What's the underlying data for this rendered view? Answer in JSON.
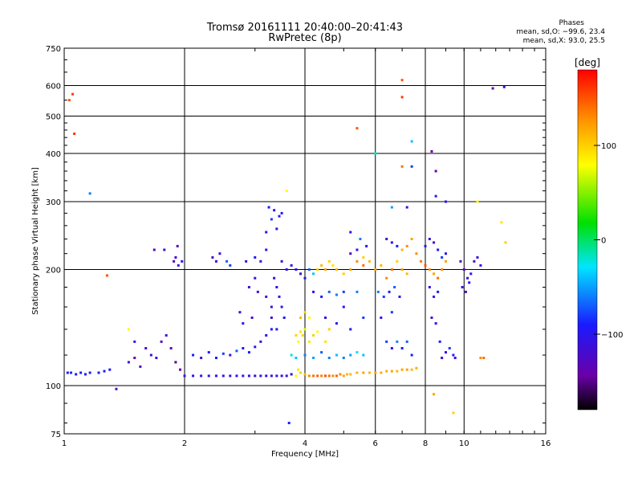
{
  "header": {
    "title_line1": "Tromsø 20161111 20:40:00–20:41:43",
    "title_line2": "RwPretec (8p)",
    "phases_title": "Phases",
    "phases_o": "mean, sd,O:  −99.6, 23.4",
    "phases_x": "mean, sd,X:   93.0, 25.5"
  },
  "chart_data": {
    "type": "scatter",
    "xlabel": "Frequency [MHz]",
    "ylabel": "Stationary phase Virtual Height [km]",
    "x_scale": "log",
    "y_scale": "log",
    "xlim": [
      1,
      16
    ],
    "ylim": [
      75,
      750
    ],
    "x_ticks": [
      1,
      2,
      4,
      6,
      8,
      10,
      16
    ],
    "y_ticks": [
      75,
      100,
      200,
      300,
      400,
      500,
      600,
      750
    ],
    "grid": true,
    "colorbar": {
      "label": "[deg]",
      "range": [
        -180,
        180
      ],
      "ticks": [
        100,
        0,
        -100
      ],
      "colormap": "rainbow (black → purple → blue → cyan → green → yellow → orange → red)"
    },
    "points_note": "values estimated from the plotted echoes; color = phase in degrees",
    "points": [
      [
        1.02,
        108,
        -90
      ],
      [
        1.04,
        108,
        -85
      ],
      [
        1.07,
        107,
        -95
      ],
      [
        1.1,
        108,
        -90
      ],
      [
        1.13,
        107,
        -95
      ],
      [
        1.16,
        108,
        -88
      ],
      [
        1.22,
        108,
        -92
      ],
      [
        1.26,
        109,
        -90
      ],
      [
        1.3,
        110,
        -95
      ],
      [
        1.35,
        98,
        -130
      ],
      [
        1.03,
        550,
        150
      ],
      [
        1.05,
        570,
        160
      ],
      [
        1.06,
        450,
        160
      ],
      [
        1.16,
        315,
        -60
      ],
      [
        1.45,
        115,
        -120
      ],
      [
        1.5,
        118,
        -140
      ],
      [
        1.55,
        112,
        -130
      ],
      [
        1.6,
        125,
        -120
      ],
      [
        1.65,
        120,
        -110
      ],
      [
        1.7,
        118,
        -100
      ],
      [
        1.75,
        130,
        -130
      ],
      [
        1.8,
        135,
        -120
      ],
      [
        1.85,
        125,
        -140
      ],
      [
        1.9,
        115,
        -150
      ],
      [
        1.95,
        110,
        -140
      ],
      [
        1.5,
        130,
        -100
      ],
      [
        1.45,
        140,
        80
      ],
      [
        1.68,
        225,
        -130
      ],
      [
        1.78,
        225,
        -120
      ],
      [
        1.88,
        210,
        -130
      ],
      [
        1.9,
        215,
        -110
      ],
      [
        1.93,
        205,
        -120
      ],
      [
        1.97,
        210,
        -100
      ],
      [
        1.92,
        230,
        -140
      ],
      [
        2.0,
        106,
        -110
      ],
      [
        2.1,
        106,
        -100
      ],
      [
        2.2,
        106,
        -105
      ],
      [
        2.3,
        106,
        -110
      ],
      [
        2.4,
        106,
        -100
      ],
      [
        2.5,
        106,
        -105
      ],
      [
        2.6,
        106,
        -110
      ],
      [
        2.7,
        106,
        -100
      ],
      [
        2.8,
        106,
        -105
      ],
      [
        2.9,
        106,
        -100
      ],
      [
        3.0,
        106,
        -110
      ],
      [
        3.1,
        106,
        -105
      ],
      [
        3.2,
        106,
        -100
      ],
      [
        3.3,
        106,
        -110
      ],
      [
        3.4,
        106,
        -105
      ],
      [
        3.5,
        106,
        -100
      ],
      [
        3.6,
        106,
        -110
      ],
      [
        3.7,
        107,
        -105
      ],
      [
        2.1,
        120,
        -90
      ],
      [
        2.2,
        118,
        -110
      ],
      [
        2.3,
        122,
        -100
      ],
      [
        2.4,
        118,
        -90
      ],
      [
        2.5,
        121,
        -80
      ],
      [
        2.6,
        120,
        -110
      ],
      [
        2.7,
        123,
        -70
      ],
      [
        2.8,
        125,
        -100
      ],
      [
        2.9,
        122,
        -90
      ],
      [
        3.0,
        126,
        -100
      ],
      [
        3.1,
        130,
        -110
      ],
      [
        3.2,
        135,
        -100
      ],
      [
        3.3,
        140,
        -90
      ],
      [
        2.35,
        215,
        -120
      ],
      [
        2.4,
        210,
        -110
      ],
      [
        2.45,
        220,
        -100
      ],
      [
        2.55,
        210,
        -70
      ],
      [
        2.6,
        205,
        -80
      ],
      [
        2.85,
        210,
        -100
      ],
      [
        3.0,
        215,
        -90
      ],
      [
        3.1,
        210,
        -110
      ],
      [
        3.2,
        225,
        -100
      ],
      [
        3.2,
        250,
        -110
      ],
      [
        3.25,
        290,
        -90
      ],
      [
        3.3,
        270,
        -80
      ],
      [
        3.35,
        285,
        -100
      ],
      [
        3.4,
        255,
        -110
      ],
      [
        3.45,
        275,
        -90
      ],
      [
        3.5,
        280,
        -100
      ],
      [
        3.35,
        190,
        -110
      ],
      [
        3.4,
        180,
        -100
      ],
      [
        3.45,
        170,
        -110
      ],
      [
        3.5,
        160,
        -100
      ],
      [
        3.55,
        150,
        -90
      ],
      [
        3.5,
        210,
        -110
      ],
      [
        3.6,
        200,
        -100
      ],
      [
        3.7,
        205,
        -100
      ],
      [
        3.3,
        160,
        -110
      ],
      [
        3.3,
        150,
        -120
      ],
      [
        3.4,
        140,
        -100
      ],
      [
        2.75,
        155,
        -110
      ],
      [
        2.8,
        145,
        -100
      ],
      [
        2.95,
        150,
        -120
      ],
      [
        3.05,
        175,
        -120
      ],
      [
        3.2,
        170,
        -130
      ],
      [
        3.0,
        190,
        -110
      ],
      [
        2.9,
        180,
        -120
      ],
      [
        3.8,
        106,
        80
      ],
      [
        3.85,
        110,
        90
      ],
      [
        3.9,
        108,
        100
      ],
      [
        4.0,
        107,
        110
      ],
      [
        4.1,
        106,
        130
      ],
      [
        4.2,
        106,
        140
      ],
      [
        4.3,
        106,
        145
      ],
      [
        4.4,
        106,
        135
      ],
      [
        4.5,
        106,
        150
      ],
      [
        4.6,
        106,
        140
      ],
      [
        4.7,
        106,
        130
      ],
      [
        4.8,
        106,
        145
      ],
      [
        4.9,
        107,
        130
      ],
      [
        5.0,
        106,
        120
      ],
      [
        5.1,
        107,
        110
      ],
      [
        5.2,
        107,
        110
      ],
      [
        5.4,
        108,
        110
      ],
      [
        5.6,
        108,
        120
      ],
      [
        5.8,
        108,
        110
      ],
      [
        6.0,
        108,
        120
      ],
      [
        6.2,
        108,
        115
      ],
      [
        6.4,
        109,
        115
      ],
      [
        6.6,
        109,
        120
      ],
      [
        6.8,
        109,
        110
      ],
      [
        7.0,
        110,
        120
      ],
      [
        7.2,
        110,
        120
      ],
      [
        7.4,
        110,
        110
      ],
      [
        7.6,
        111,
        115
      ],
      [
        3.8,
        135,
        100
      ],
      [
        3.85,
        130,
        80
      ],
      [
        3.9,
        138,
        90
      ],
      [
        3.95,
        135,
        100
      ],
      [
        4.0,
        140,
        70
      ],
      [
        4.1,
        130,
        90
      ],
      [
        4.2,
        135,
        100
      ],
      [
        4.3,
        138,
        80
      ],
      [
        4.5,
        130,
        90
      ],
      [
        4.6,
        140,
        100
      ],
      [
        3.9,
        150,
        110
      ],
      [
        4.0,
        155,
        100
      ],
      [
        4.1,
        150,
        80
      ],
      [
        3.7,
        120,
        -20
      ],
      [
        3.8,
        118,
        -40
      ],
      [
        4.0,
        120,
        -60
      ],
      [
        4.2,
        118,
        -50
      ],
      [
        4.4,
        122,
        -70
      ],
      [
        4.6,
        118,
        -60
      ],
      [
        4.8,
        120,
        -40
      ],
      [
        5.0,
        118,
        -60
      ],
      [
        5.2,
        120,
        -50
      ],
      [
        5.4,
        122,
        -30
      ],
      [
        5.6,
        120,
        -40
      ],
      [
        3.8,
        200,
        -100
      ],
      [
        3.9,
        195,
        -110
      ],
      [
        4.0,
        190,
        -90
      ],
      [
        4.1,
        200,
        -70
      ],
      [
        4.2,
        195,
        -40
      ],
      [
        4.3,
        200,
        100
      ],
      [
        4.4,
        205,
        110
      ],
      [
        4.5,
        200,
        120
      ],
      [
        4.6,
        210,
        100
      ],
      [
        4.7,
        205,
        90
      ],
      [
        4.8,
        200,
        110
      ],
      [
        5.0,
        195,
        100
      ],
      [
        5.2,
        200,
        120
      ],
      [
        5.4,
        210,
        130
      ],
      [
        5.6,
        205,
        140
      ],
      [
        4.2,
        175,
        -100
      ],
      [
        4.4,
        170,
        -90
      ],
      [
        4.6,
        175,
        -70
      ],
      [
        4.8,
        172,
        -60
      ],
      [
        5.0,
        175,
        -80
      ],
      [
        5.4,
        175,
        -60
      ],
      [
        4.5,
        150,
        -110
      ],
      [
        4.8,
        145,
        -100
      ],
      [
        5.2,
        140,
        -90
      ],
      [
        5.6,
        150,
        -80
      ],
      [
        5.0,
        160,
        -100
      ],
      [
        5.2,
        220,
        -120
      ],
      [
        5.4,
        225,
        -100
      ],
      [
        5.6,
        215,
        100
      ],
      [
        5.8,
        210,
        110
      ],
      [
        5.7,
        230,
        -90
      ],
      [
        5.5,
        240,
        -60
      ],
      [
        5.2,
        250,
        -110
      ],
      [
        6.0,
        200,
        120
      ],
      [
        6.2,
        205,
        110
      ],
      [
        6.4,
        190,
        130
      ],
      [
        6.6,
        200,
        140
      ],
      [
        6.8,
        210,
        100
      ],
      [
        7.0,
        200,
        120
      ],
      [
        7.2,
        195,
        110
      ],
      [
        6.1,
        175,
        -60
      ],
      [
        6.3,
        170,
        -80
      ],
      [
        6.5,
        175,
        -90
      ],
      [
        6.7,
        180,
        -70
      ],
      [
        6.9,
        170,
        -100
      ],
      [
        6.2,
        150,
        -100
      ],
      [
        6.6,
        155,
        -80
      ],
      [
        6.4,
        130,
        -80
      ],
      [
        6.6,
        125,
        -100
      ],
      [
        6.8,
        130,
        -60
      ],
      [
        7.0,
        125,
        -90
      ],
      [
        7.2,
        130,
        -70
      ],
      [
        7.4,
        120,
        -90
      ],
      [
        6.4,
        240,
        -120
      ],
      [
        6.6,
        235,
        -100
      ],
      [
        6.8,
        230,
        -90
      ],
      [
        7.0,
        225,
        110
      ],
      [
        7.2,
        230,
        130
      ],
      [
        7.4,
        240,
        120
      ],
      [
        7.6,
        220,
        130
      ],
      [
        7.8,
        210,
        140
      ],
      [
        8.0,
        205,
        150
      ],
      [
        8.2,
        200,
        130
      ],
      [
        8.4,
        195,
        120
      ],
      [
        8.6,
        190,
        140
      ],
      [
        8.8,
        200,
        130
      ],
      [
        9.0,
        210,
        120
      ],
      [
        8.0,
        230,
        -100
      ],
      [
        8.2,
        240,
        -110
      ],
      [
        8.4,
        235,
        -120
      ],
      [
        8.6,
        225,
        -90
      ],
      [
        8.8,
        215,
        -80
      ],
      [
        9.0,
        220,
        -100
      ],
      [
        8.2,
        180,
        -100
      ],
      [
        8.4,
        170,
        -110
      ],
      [
        8.6,
        175,
        -90
      ],
      [
        8.3,
        150,
        -120
      ],
      [
        8.5,
        145,
        -100
      ],
      [
        8.7,
        130,
        -90
      ],
      [
        8.8,
        118,
        -110
      ],
      [
        9.0,
        122,
        -100
      ],
      [
        9.2,
        125,
        -80
      ],
      [
        9.4,
        120,
        -90
      ],
      [
        9.5,
        118,
        -110
      ],
      [
        9.8,
        210,
        -120
      ],
      [
        10.0,
        200,
        -130
      ],
      [
        10.2,
        190,
        -110
      ],
      [
        10.4,
        195,
        -100
      ],
      [
        10.6,
        210,
        -120
      ],
      [
        10.8,
        215,
        -110
      ],
      [
        11.0,
        205,
        -100
      ],
      [
        9.9,
        180,
        -110
      ],
      [
        10.1,
        175,
        -120
      ],
      [
        10.3,
        185,
        -100
      ],
      [
        11.0,
        118,
        130
      ],
      [
        11.2,
        118,
        140
      ],
      [
        6.0,
        400,
        -20
      ],
      [
        7.0,
        620,
        150
      ],
      [
        7.0,
        560,
        160
      ],
      [
        7.4,
        430,
        -40
      ],
      [
        7.0,
        370,
        140
      ],
      [
        7.4,
        370,
        -80
      ],
      [
        8.3,
        405,
        -140
      ],
      [
        8.5,
        360,
        -140
      ],
      [
        8.5,
        310,
        -100
      ],
      [
        5.4,
        465,
        150
      ],
      [
        7.2,
        290,
        -100
      ],
      [
        6.6,
        290,
        -50
      ],
      [
        9.0,
        300,
        -100
      ],
      [
        11.8,
        590,
        -140
      ],
      [
        12.6,
        595,
        -120
      ],
      [
        10.8,
        300,
        80
      ],
      [
        12.4,
        265,
        90
      ],
      [
        12.7,
        235,
        100
      ],
      [
        3.6,
        320,
        80
      ],
      [
        8.4,
        95,
        120
      ],
      [
        9.4,
        85,
        100
      ],
      [
        3.65,
        80,
        -90
      ],
      [
        1.28,
        193,
        150
      ]
    ]
  }
}
